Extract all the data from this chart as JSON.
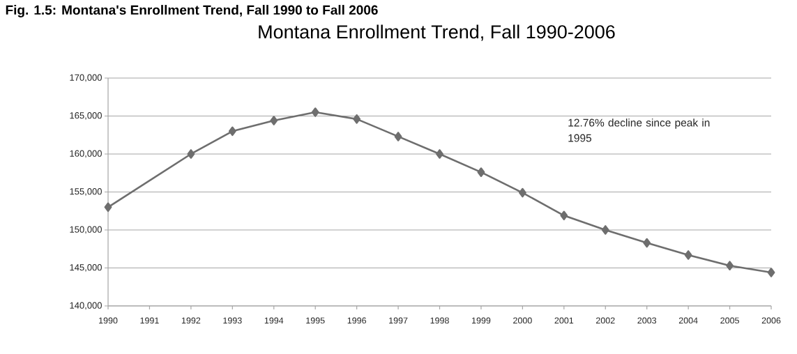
{
  "chart_data": {
    "type": "line",
    "title": "Montana Enrollment Trend, Fall 1990-2006",
    "annotations": [
      "12.76% decline since peak in 1995",
      "Fig. 1.5: Montana's Enrollment Trend, Fall 1990 to Fall 2006"
    ],
    "categories": [
      "1990",
      "1991",
      "1992",
      "1993",
      "1994",
      "1995",
      "1996",
      "1997",
      "1998",
      "1999",
      "2000",
      "2001",
      "2002",
      "2003",
      "2004",
      "2005",
      "2006"
    ],
    "series": [
      {
        "color": "#6e6e6e",
        "values": [
          153000,
          null,
          160000,
          163000,
          164400,
          165500,
          164600,
          162300,
          160000,
          157600,
          154900,
          151900,
          150000,
          148300,
          146700,
          145300,
          144400
        ]
      }
    ],
    "ylim": [
      140000,
      170000
    ],
    "yticks": [
      {
        "value": 140000,
        "label": "140,000"
      },
      {
        "value": 145000,
        "label": "145,000"
      },
      {
        "value": 150000,
        "label": "150,000"
      },
      {
        "value": 155000,
        "label": "155,000"
      },
      {
        "value": 160000,
        "label": "160,000"
      },
      {
        "value": 165000,
        "label": "165,000"
      },
      {
        "value": 170000,
        "label": "170,000"
      }
    ],
    "grid": "y",
    "marker": "diamond",
    "line_style": "solid"
  }
}
